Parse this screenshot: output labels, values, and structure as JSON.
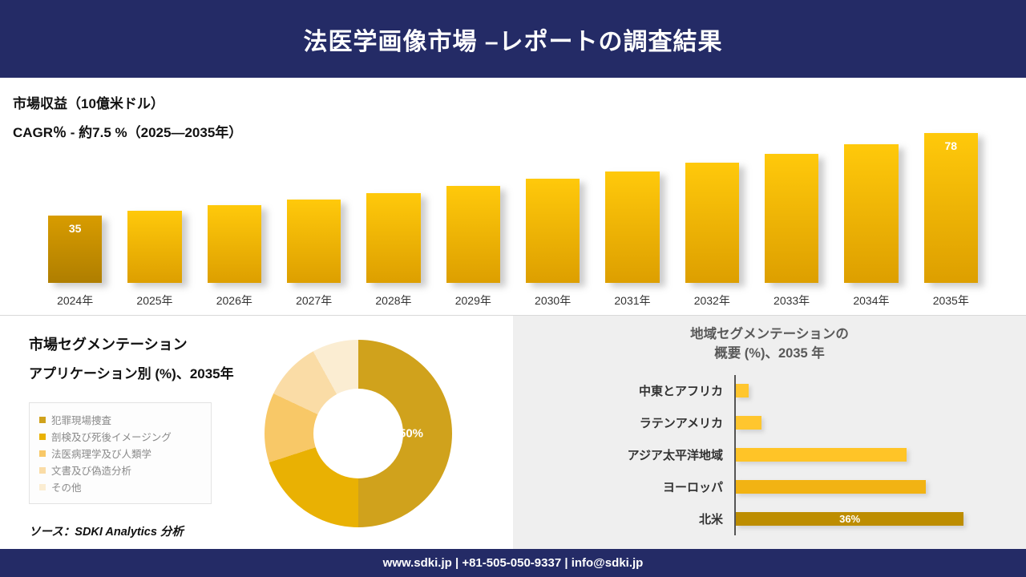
{
  "header": {
    "title": "法医学画像市場 –レポートの調査結果"
  },
  "revenue": {
    "heading": "市場収益（10億米ドル）",
    "cagr_line": "CAGR％ - 約7.5 %（2025―2035年）"
  },
  "segmentation": {
    "title_line1": "市場セグメンテーション",
    "title_line2": "アプリケーション別 (%)、2035年",
    "source": "ソース：SDKI Analytics 分析"
  },
  "region": {
    "title_line1": "地域セグメンテーションの",
    "title_line2": "概要 (%)、2035 年"
  },
  "footer": {
    "text": "www.sdki.jp | +81-505-050-9337 | info@sdki.jp"
  },
  "chart_data": [
    {
      "id": "market-revenue",
      "type": "bar",
      "title": "市場収益（10億米ドル）",
      "subtitle": "CAGR％ - 約7.5 %（2025―2035年）",
      "cagr_percent": 7.5,
      "categories": [
        "2024年",
        "2025年",
        "2026年",
        "2027年",
        "2028年",
        "2029年",
        "2030年",
        "2031年",
        "2032年",
        "2033年",
        "2034年",
        "2035年"
      ],
      "values": [
        35,
        37.6,
        40.5,
        43.5,
        46.8,
        50.3,
        54.1,
        58.1,
        62.5,
        67.2,
        72.2,
        78
      ],
      "data_labels": {
        "0": "35",
        "11": "78"
      },
      "ylim": [
        0,
        85
      ],
      "grid": false,
      "bar_color_top": "#FFC90B",
      "bar_color_bottom": "#DD9F00",
      "first_bar_color_top": "#D89C00",
      "first_bar_color_bottom": "#AF7E00"
    },
    {
      "id": "application-share",
      "type": "pie",
      "title": "アプリケーション別 (%)、2035年",
      "labels": [
        "犯罪現場捜査",
        "剖検及び死後イメージング",
        "法医病理学及び人類学",
        "文書及び偽造分析",
        "その他"
      ],
      "values": [
        50,
        20,
        12,
        10,
        8
      ],
      "colors": [
        "#D0A21C",
        "#E9B103",
        "#F8C867",
        "#FADCA6",
        "#FBEDD2"
      ],
      "shown_label": "50%",
      "legend_position": "left"
    },
    {
      "id": "regional-overview",
      "type": "bar",
      "orientation": "horizontal",
      "title": "地域セグメンテーションの概要 (%)、2035 年",
      "categories": [
        "中東とアフリカ",
        "ラテンアメリカ",
        "アジア太平洋地域",
        "ヨーロッパ",
        "北米"
      ],
      "values": [
        2,
        4,
        27,
        30,
        36
      ],
      "colors": [
        "#FFC62E",
        "#FFC62E",
        "#FFC427",
        "#F2B313",
        "#BD8D00"
      ],
      "data_labels": {
        "4": "36%"
      },
      "xlim": [
        0,
        40
      ],
      "grid": false
    }
  ]
}
